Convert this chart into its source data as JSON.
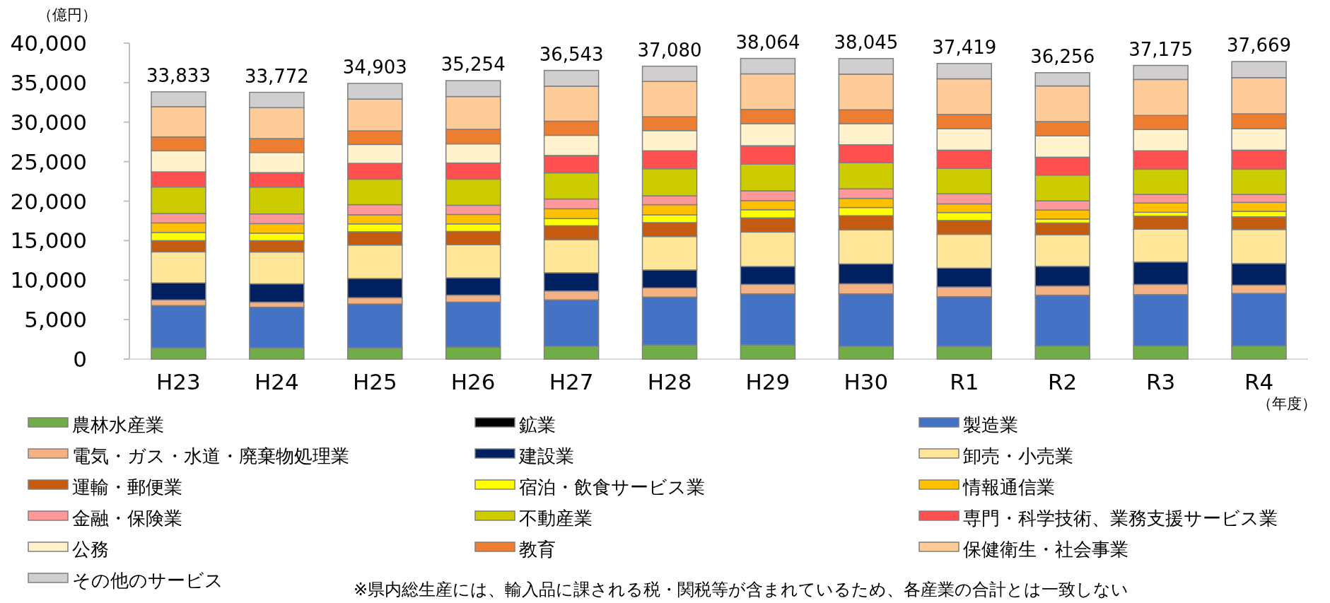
{
  "chart_data": {
    "type": "bar",
    "stacked": true,
    "ylabel": "（億円）",
    "xlabel": "（年度）",
    "categories": [
      "H23",
      "H24",
      "H25",
      "H26",
      "H27",
      "H28",
      "H29",
      "H30",
      "R1",
      "R2",
      "R3",
      "R4"
    ],
    "ylim": [
      0,
      40000
    ],
    "yticks": [
      {
        "value": 0,
        "label": "0"
      },
      {
        "value": 5000,
        "label": "5,000"
      },
      {
        "value": 10000,
        "label": "10,000"
      },
      {
        "value": 15000,
        "label": "15,000"
      },
      {
        "value": 20000,
        "label": "20,000"
      },
      {
        "value": 25000,
        "label": "25,000"
      },
      {
        "value": 30000,
        "label": "30,000"
      },
      {
        "value": 35000,
        "label": "35,000"
      },
      {
        "value": 40000,
        "label": "40,000"
      }
    ],
    "totals": [
      "33,833",
      "33,772",
      "34,903",
      "35,254",
      "36,543",
      "37,080",
      "38,064",
      "38,045",
      "37,419",
      "36,256",
      "37,175",
      "37,669"
    ],
    "legend": "bottom",
    "annotations": [
      "※県内総生産には、輸入品に課される税・関税等が含まれているため、各産業の合計とは一致しない"
    ],
    "series": [
      {
        "name": "農林水産業",
        "color": "#70ad47",
        "values": [
          1450,
          1440,
          1440,
          1520,
          1640,
          1800,
          1800,
          1640,
          1630,
          1670,
          1670,
          1670
        ]
      },
      {
        "name": "鉱業",
        "color": "#000000",
        "values": [
          0,
          0,
          0,
          0,
          0,
          0,
          0,
          0,
          0,
          0,
          0,
          0
        ]
      },
      {
        "name": "製造業",
        "color": "#4472c4",
        "values": [
          5330,
          5130,
          5540,
          5700,
          5860,
          6060,
          6460,
          6620,
          6270,
          6420,
          6500,
          6650
        ]
      },
      {
        "name": "電気・ガス・水道・廃棄物処理業",
        "color": "#f4b183",
        "values": [
          720,
          640,
          800,
          880,
          1120,
          1160,
          1200,
          1280,
          1240,
          1170,
          1280,
          1050
        ]
      },
      {
        "name": "建設業",
        "color": "#002060",
        "values": [
          2150,
          2320,
          2430,
          2190,
          2310,
          2270,
          2270,
          2510,
          2380,
          2490,
          2840,
          2730
        ]
      },
      {
        "name": "卸売・小売業",
        "color": "#ffe699",
        "values": [
          3920,
          4030,
          4230,
          4190,
          4190,
          4230,
          4350,
          4310,
          4280,
          4000,
          4160,
          4310
        ]
      },
      {
        "name": "運輸・郵便業",
        "color": "#c55a11",
        "values": [
          1430,
          1430,
          1680,
          1680,
          1760,
          1760,
          1800,
          1790,
          1750,
          1480,
          1640,
          1600
        ]
      },
      {
        "name": "宿泊・飲食サービス業",
        "color": "#ffff00",
        "values": [
          1040,
          960,
          1000,
          960,
          920,
          990,
          1030,
          1040,
          1010,
          510,
          500,
          700
        ]
      },
      {
        "name": "情報通信業",
        "color": "#ffc000",
        "values": [
          1200,
          1200,
          1150,
          1190,
          1230,
          1280,
          1160,
          1160,
          1090,
          1130,
          1170,
          1130
        ]
      },
      {
        "name": "金融・保険業",
        "color": "#ff9999",
        "values": [
          1190,
          1230,
          1280,
          1160,
          1240,
          1120,
          1240,
          1200,
          1280,
          1160,
          1090,
          1010
        ]
      },
      {
        "name": "不動産業",
        "color": "#cccc00",
        "values": [
          3360,
          3400,
          3230,
          3310,
          3310,
          3430,
          3390,
          3310,
          3230,
          3270,
          3190,
          3190
        ]
      },
      {
        "name": "専門・科学技術、業務支援サービス業",
        "color": "#ff5050",
        "values": [
          1910,
          1830,
          2000,
          2040,
          2200,
          2270,
          2310,
          2270,
          2290,
          2260,
          2330,
          2410
        ]
      },
      {
        "name": "公務",
        "color": "#fff2cc",
        "values": [
          2670,
          2550,
          2390,
          2430,
          2550,
          2560,
          2800,
          2680,
          2730,
          2720,
          2690,
          2730
        ]
      },
      {
        "name": "教育",
        "color": "#ed7d31",
        "values": [
          1760,
          1760,
          1720,
          1840,
          1790,
          1750,
          1790,
          1750,
          1790,
          1790,
          1790,
          1870
        ]
      },
      {
        "name": "保健衛生・社会事業",
        "color": "#ffcc99",
        "values": [
          3830,
          3910,
          4030,
          4150,
          4430,
          4470,
          4510,
          4510,
          4510,
          4510,
          4550,
          4580
        ]
      },
      {
        "name": "その他のサービス",
        "color": "#d0cece",
        "values": [
          1873,
          1942,
          1983,
          2014,
          1993,
          1930,
          1954,
          1975,
          1939,
          1676,
          1775,
          2039
        ]
      }
    ]
  }
}
